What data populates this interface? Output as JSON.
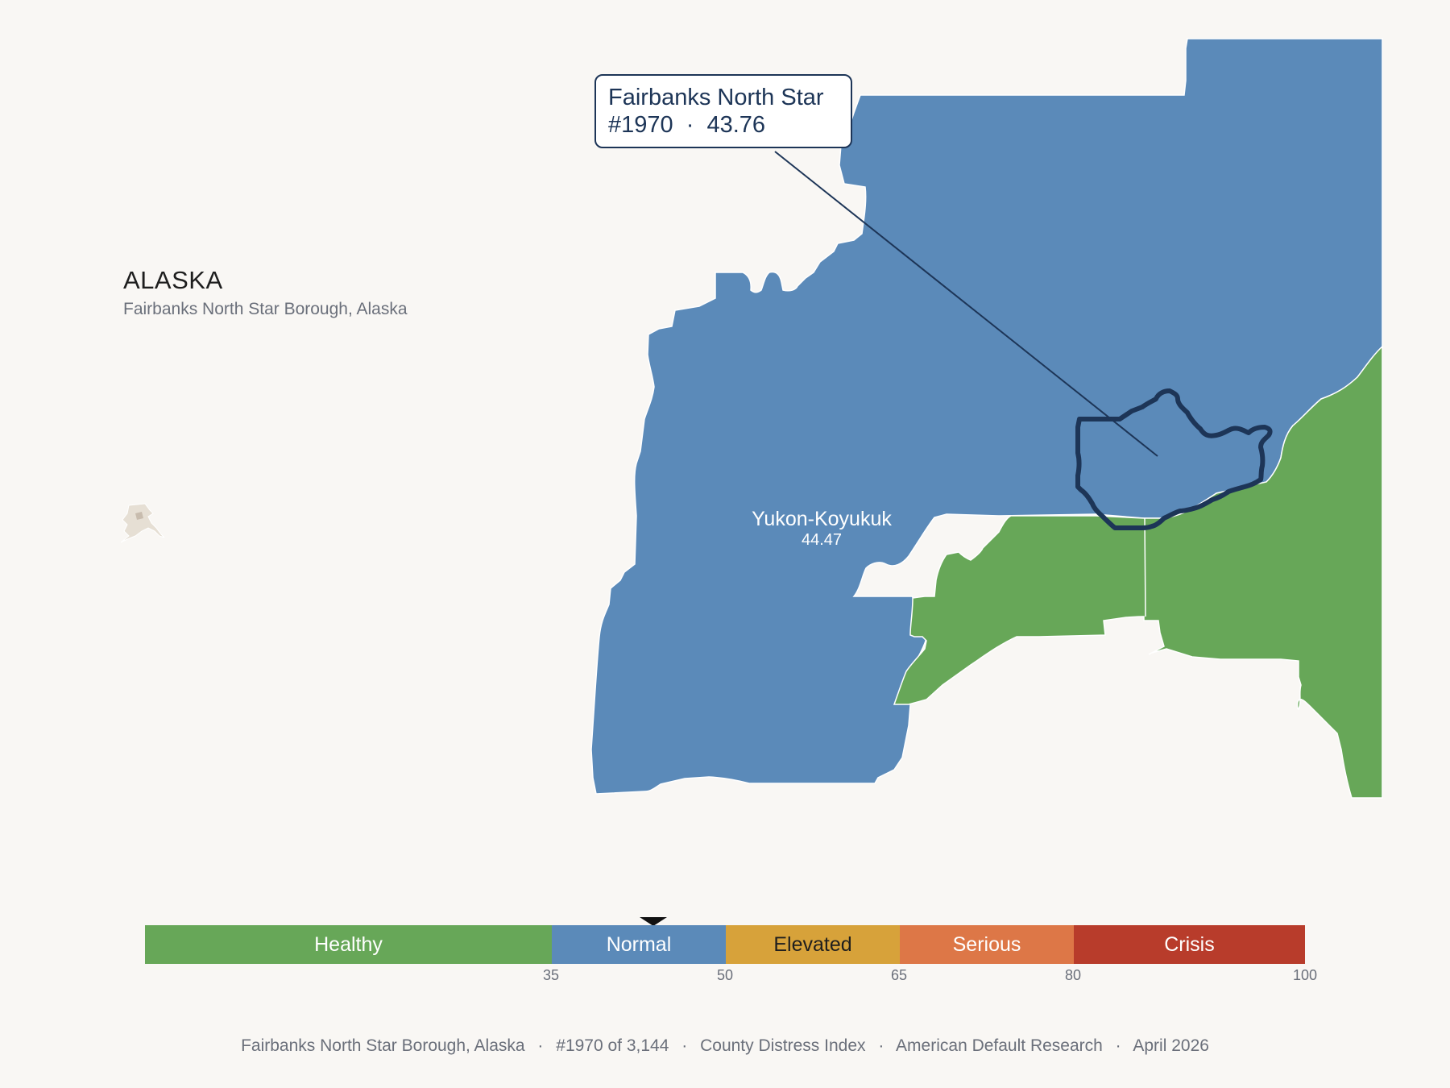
{
  "state": {
    "title": "ALASKA",
    "subtitle": "Fairbanks North Star Borough, Alaska"
  },
  "callout": {
    "name": "Fairbanks North Star",
    "rank": "#1970",
    "separator": "·",
    "score": "43.76"
  },
  "regions": [
    {
      "name": "Yukon-Koyukuk",
      "value": "44.47",
      "category": "Normal"
    },
    {
      "name": "Fairbanks North Star",
      "value": "43.76",
      "category": "Normal",
      "highlighted": true
    }
  ],
  "colors": {
    "healthy": "#67a758",
    "normal": "#5b8ab9",
    "elevated": "#d7a23a",
    "serious": "#dd7747",
    "crisis": "#b83c2b",
    "highlight_outline": "#1d3557",
    "background": "#f9f7f4"
  },
  "legend": {
    "segments": [
      "Healthy",
      "Normal",
      "Elevated",
      "Serious",
      "Crisis"
    ],
    "ticks": [
      "35",
      "50",
      "65",
      "80",
      "100"
    ],
    "marker_value": 43.76
  },
  "footer": {
    "county": "Fairbanks North Star Borough, Alaska",
    "rank": "#1970 of 3,144",
    "index": "County Distress Index",
    "source": "American Default Research",
    "date": "April 2026",
    "separator": "·"
  },
  "icons": {
    "inset": "alaska-locator-inset"
  }
}
